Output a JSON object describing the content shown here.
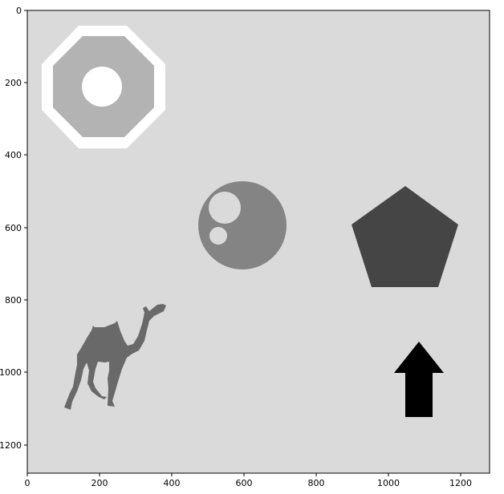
{
  "figure": {
    "background": "#ffffff",
    "image_background": "#dadada",
    "x_ticks": [
      "0",
      "200",
      "400",
      "600",
      "800",
      "1000",
      "1200"
    ],
    "y_ticks": [
      "0",
      "200",
      "400",
      "600",
      "800",
      "1000",
      "1200"
    ],
    "x_range": [
      0,
      1280
    ],
    "y_range": [
      1280,
      0
    ],
    "shapes": [
      {
        "name": "octagon-ring-shape",
        "color": "#ffffff"
      },
      {
        "name": "octagon-shape",
        "color": "#b3b3b3"
      },
      {
        "name": "octagon-hole-shape",
        "color": "#ffffff"
      },
      {
        "name": "circle-shape",
        "color": "#848484"
      },
      {
        "name": "circle-large-hole-shape",
        "color": "#dadada"
      },
      {
        "name": "circle-small-hole-shape",
        "color": "#dadada"
      },
      {
        "name": "pentagon-shape",
        "color": "#454545"
      },
      {
        "name": "camel-silhouette",
        "color": "#696969"
      },
      {
        "name": "up-arrow-shape",
        "color": "#000000"
      }
    ]
  }
}
